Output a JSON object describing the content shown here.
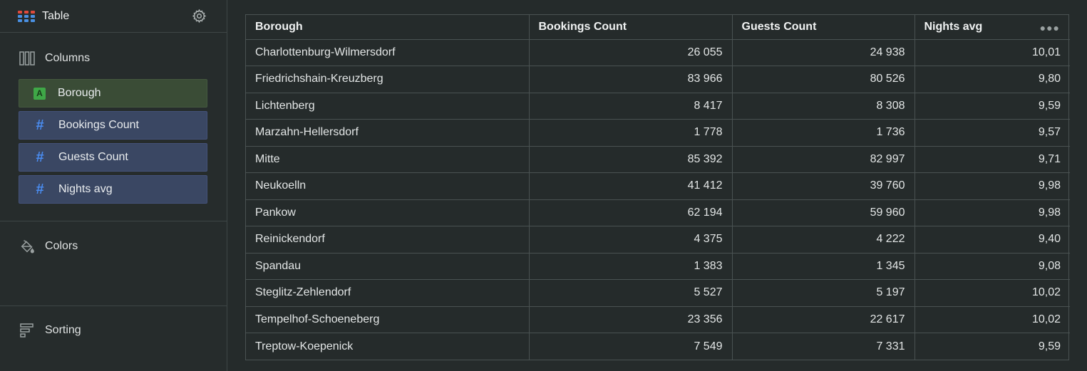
{
  "sidebar": {
    "title": "Table",
    "sections": {
      "columns": "Columns",
      "colors": "Colors",
      "sorting": "Sorting"
    },
    "fields": [
      {
        "label": "Borough",
        "kind": "dimension",
        "tag": "A"
      },
      {
        "label": "Bookings Count",
        "kind": "measure",
        "tag": "#"
      },
      {
        "label": "Guests Count",
        "kind": "measure",
        "tag": "#"
      },
      {
        "label": "Nights avg",
        "kind": "measure",
        "tag": "#"
      }
    ]
  },
  "table": {
    "headers": [
      "Borough",
      "Bookings Count",
      "Guests Count",
      "Nights avg"
    ],
    "rows": [
      [
        "Charlottenburg-Wilmersdorf",
        "26 055",
        "24 938",
        "10,01"
      ],
      [
        "Friedrichshain-Kreuzberg",
        "83 966",
        "80 526",
        "9,80"
      ],
      [
        "Lichtenberg",
        "8 417",
        "8 308",
        "9,59"
      ],
      [
        "Marzahn-Hellersdorf",
        "1 778",
        "1 736",
        "9,57"
      ],
      [
        "Mitte",
        "85 392",
        "82 997",
        "9,71"
      ],
      [
        "Neukoelln",
        "41 412",
        "39 760",
        "9,98"
      ],
      [
        "Pankow",
        "62 194",
        "59 960",
        "9,98"
      ],
      [
        "Reinickendorf",
        "4 375",
        "4 222",
        "9,40"
      ],
      [
        "Spandau",
        "1 383",
        "1 345",
        "9,08"
      ],
      [
        "Steglitz-Zehlendorf",
        "5 527",
        "5 197",
        "10,02"
      ],
      [
        "Tempelhof-Schoeneberg",
        "23 356",
        "22 617",
        "10,02"
      ],
      [
        "Treptow-Koepenick",
        "7 549",
        "7 331",
        "9,59"
      ]
    ]
  },
  "colors": {
    "background": "#252b2b",
    "dimension_chip": "#3a4c36",
    "measure_chip": "#3a4763",
    "dimension_tag": "#3fa747",
    "measure_tag": "#4a8cf0"
  },
  "icons": {
    "table": "table-grid-icon",
    "settings": "gear-icon",
    "columns": "columns-icon",
    "colors": "paint-bucket-icon",
    "sorting": "sort-icon",
    "more": "more-horizontal-icon"
  }
}
